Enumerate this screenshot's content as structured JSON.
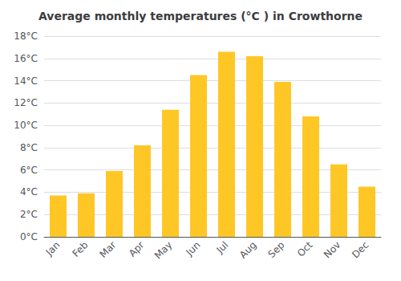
{
  "chart_data": {
    "type": "bar",
    "title": "Average monthly temperatures (°C ) in Crowthorne",
    "categories": [
      "Jan",
      "Feb",
      "Mar",
      "Apr",
      "May",
      "Jun",
      "Jul",
      "Aug",
      "Sep",
      "Oct",
      "Nov",
      "Dec"
    ],
    "values": [
      3.7,
      3.9,
      5.9,
      8.2,
      11.4,
      14.5,
      16.6,
      16.2,
      13.9,
      10.8,
      6.5,
      4.5
    ],
    "color": "#FFC726",
    "ylim": [
      0,
      18
    ],
    "yticks": [
      {
        "value": 0,
        "label": "0°C"
      },
      {
        "value": 2,
        "label": "2°C"
      },
      {
        "value": 4,
        "label": "4°C"
      },
      {
        "value": 6,
        "label": "6°C"
      },
      {
        "value": 8,
        "label": "8°C"
      },
      {
        "value": 10,
        "label": "10°C"
      },
      {
        "value": 12,
        "label": "12°C"
      },
      {
        "value": 14,
        "label": "14°C"
      },
      {
        "value": 16,
        "label": "16°C"
      },
      {
        "value": 18,
        "label": "18°C"
      }
    ],
    "grid": true
  }
}
